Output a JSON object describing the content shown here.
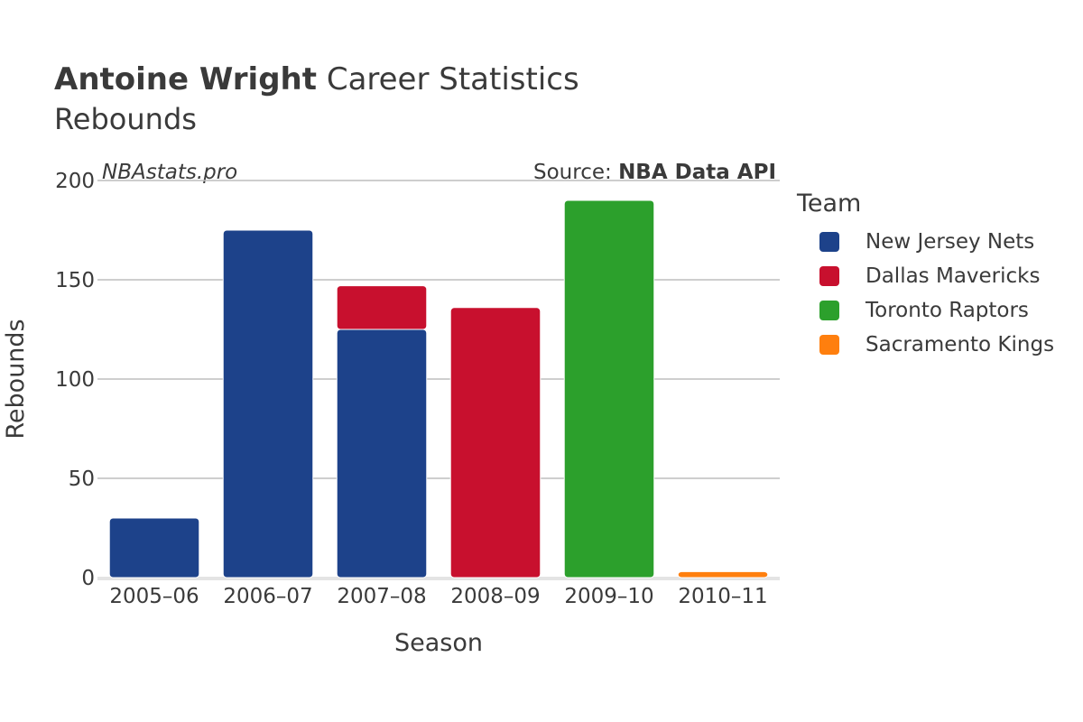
{
  "header": {
    "title_bold": "Antoine Wright",
    "title_rest": " Career Statistics",
    "subtitle": "Rebounds",
    "watermark": "NBAstats.pro",
    "source_prefix": "Source: ",
    "source_bold": "NBA Data API"
  },
  "chart_data": {
    "type": "bar",
    "stacked": true,
    "xlabel": "Season",
    "ylabel": "Rebounds",
    "ylim": [
      0,
      200
    ],
    "yticks": [
      0,
      50,
      100,
      150,
      200
    ],
    "grid": true,
    "legend_title": "Team",
    "legend_position": "right",
    "categories": [
      "2005–06",
      "2006–07",
      "2007–08",
      "2008–09",
      "2009–10",
      "2010–11"
    ],
    "series": [
      {
        "name": "New Jersey Nets",
        "color": "#1d428a",
        "values": [
          30,
          175,
          125,
          0,
          0,
          0
        ]
      },
      {
        "name": "Dallas Mavericks",
        "color": "#c8102e",
        "values": [
          0,
          0,
          22,
          136,
          0,
          0
        ]
      },
      {
        "name": "Toronto Raptors",
        "color": "#2ca02c",
        "values": [
          0,
          0,
          0,
          0,
          190,
          0
        ]
      },
      {
        "name": "Sacramento Kings",
        "color": "#ff7f0e",
        "values": [
          0,
          0,
          0,
          0,
          0,
          3
        ]
      }
    ]
  }
}
